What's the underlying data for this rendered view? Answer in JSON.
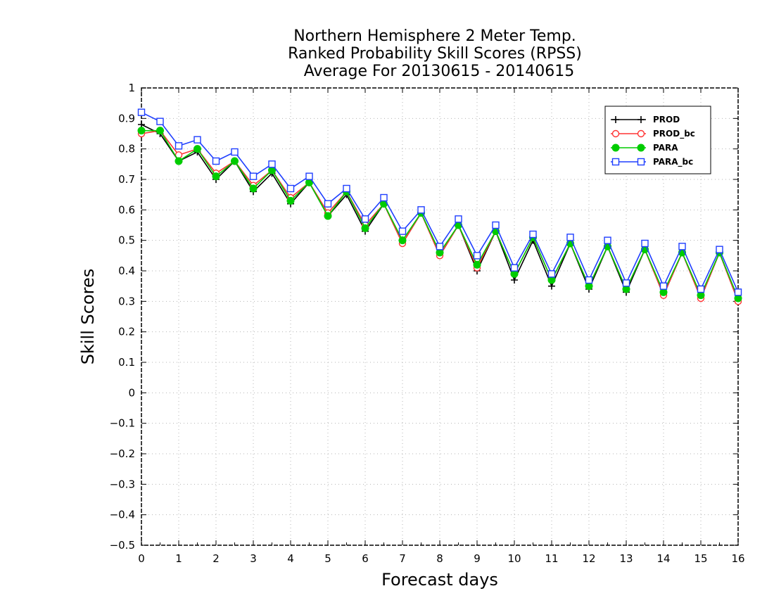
{
  "chart_data": {
    "type": "line",
    "title_lines": [
      "Northern Hemisphere 2 Meter Temp.",
      "Ranked Probability Skill Scores (RPSS)",
      "Average For 20130615 - 20140615"
    ],
    "xlabel": "Forecast days",
    "ylabel": "Skill Scores",
    "xlim": [
      0,
      16
    ],
    "ylim": [
      -0.5,
      1
    ],
    "xticks": [
      0,
      1,
      2,
      3,
      4,
      5,
      6,
      7,
      8,
      9,
      10,
      11,
      12,
      13,
      14,
      15,
      16
    ],
    "yticks": [
      -0.5,
      -0.4,
      -0.3,
      -0.2,
      -0.1,
      0,
      0.1,
      0.2,
      0.3,
      0.4,
      0.5,
      0.6,
      0.7,
      0.8,
      0.9,
      1
    ],
    "xtick_labels": [
      "0",
      "1",
      "2",
      "3",
      "4",
      "5",
      "6",
      "7",
      "8",
      "9",
      "10",
      "11",
      "12",
      "13",
      "14",
      "15",
      "16"
    ],
    "ytick_labels": [
      "−0.5",
      "−0.4",
      "−0.3",
      "−0.2",
      "−0.1",
      "0",
      "0.1",
      "0.2",
      "0.3",
      "0.4",
      "0.5",
      "0.6",
      "0.7",
      "0.8",
      "0.9",
      "1"
    ],
    "grid": true,
    "legend_position": "top-right",
    "x": [
      0,
      0.5,
      1,
      1.5,
      2,
      2.5,
      3,
      3.5,
      4,
      4.5,
      5,
      5.5,
      6,
      6.5,
      7,
      7.5,
      8,
      8.5,
      9,
      9.5,
      10,
      10.5,
      11,
      11.5,
      12,
      12.5,
      13,
      13.5,
      14,
      14.5,
      15,
      15.5,
      16
    ],
    "series": [
      {
        "name": "PROD",
        "color": "#000000",
        "marker": "plus",
        "values": [
          0.88,
          0.85,
          0.76,
          0.79,
          0.7,
          0.76,
          0.66,
          0.72,
          0.62,
          0.69,
          0.58,
          0.65,
          0.53,
          0.62,
          0.49,
          0.59,
          0.45,
          0.55,
          0.4,
          0.53,
          0.37,
          0.5,
          0.35,
          0.49,
          0.34,
          0.48,
          0.33,
          0.47,
          0.32,
          0.46,
          0.31,
          0.46,
          0.3
        ]
      },
      {
        "name": "PROD_bc",
        "color": "#ff3333",
        "marker": "circle-open",
        "values": [
          0.85,
          0.86,
          0.78,
          0.8,
          0.72,
          0.76,
          0.68,
          0.73,
          0.64,
          0.69,
          0.59,
          0.66,
          0.55,
          0.62,
          0.49,
          0.59,
          0.45,
          0.55,
          0.41,
          0.53,
          0.39,
          0.51,
          0.37,
          0.49,
          0.35,
          0.48,
          0.34,
          0.47,
          0.32,
          0.46,
          0.31,
          0.46,
          0.3
        ]
      },
      {
        "name": "PARA",
        "color": "#00cc00",
        "marker": "circle-filled",
        "values": [
          0.86,
          0.86,
          0.76,
          0.8,
          0.71,
          0.76,
          0.67,
          0.73,
          0.63,
          0.69,
          0.58,
          0.66,
          0.54,
          0.62,
          0.5,
          0.59,
          0.46,
          0.55,
          0.42,
          0.53,
          0.39,
          0.51,
          0.37,
          0.49,
          0.35,
          0.48,
          0.34,
          0.47,
          0.33,
          0.46,
          0.32,
          0.46,
          0.31
        ]
      },
      {
        "name": "PARA_bc",
        "color": "#1f3fff",
        "marker": "square-open",
        "values": [
          0.92,
          0.89,
          0.81,
          0.83,
          0.76,
          0.79,
          0.71,
          0.75,
          0.67,
          0.71,
          0.62,
          0.67,
          0.57,
          0.64,
          0.53,
          0.6,
          0.48,
          0.57,
          0.45,
          0.55,
          0.41,
          0.52,
          0.39,
          0.51,
          0.37,
          0.5,
          0.36,
          0.49,
          0.35,
          0.48,
          0.34,
          0.47,
          0.33
        ]
      }
    ]
  }
}
